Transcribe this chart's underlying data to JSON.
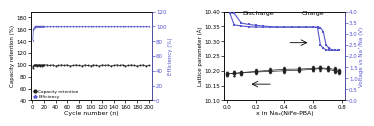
{
  "left_plot": {
    "cycle_numbers": [
      1,
      2,
      3,
      4,
      5,
      6,
      7,
      8,
      9,
      10,
      11,
      12,
      13,
      14,
      15,
      16,
      17,
      18,
      19,
      20,
      25,
      30,
      35,
      40,
      45,
      50,
      55,
      60,
      65,
      70,
      75,
      80,
      85,
      90,
      95,
      100,
      105,
      110,
      115,
      120,
      125,
      130,
      135,
      140,
      145,
      150,
      155,
      160,
      165,
      170,
      175,
      180,
      185,
      190,
      195,
      200
    ],
    "capacity_retention": [
      95,
      98,
      99,
      100,
      99,
      100,
      100,
      99,
      98,
      100,
      99,
      100,
      98,
      99,
      100,
      99,
      98,
      100,
      99,
      100,
      100,
      99,
      100,
      98,
      99,
      100,
      99,
      100,
      98,
      99,
      100,
      99,
      98,
      100,
      99,
      98,
      100,
      99,
      98,
      100,
      99,
      100,
      98,
      99,
      100,
      99,
      100,
      98,
      99,
      100,
      99,
      98,
      99,
      100,
      98,
      99
    ],
    "efficiency": [
      82,
      96,
      98,
      99,
      100,
      100,
      100,
      100,
      100,
      100,
      100,
      100,
      100,
      100,
      100,
      100,
      100,
      100,
      100,
      100,
      100,
      100,
      100,
      100,
      100,
      100,
      100,
      100,
      100,
      100,
      100,
      100,
      100,
      100,
      100,
      100,
      100,
      100,
      100,
      100,
      100,
      100,
      100,
      100,
      100,
      100,
      100,
      100,
      100,
      100,
      100,
      100,
      100,
      100,
      100,
      100
    ],
    "left_ylabel": "Capacity retention (%)",
    "right_ylabel": "Efficiency (%)",
    "xlabel": "Cycle number (n)",
    "legend_cap": "Capacity retention",
    "legend_eff": "Efficiency",
    "left_ylim": [
      40,
      190
    ],
    "left_yticks": [
      40,
      60,
      80,
      100,
      120,
      140,
      160,
      180
    ],
    "right_ylim": [
      0,
      120
    ],
    "right_yticks": [
      0,
      20,
      40,
      60,
      80,
      100,
      120
    ],
    "xlim": [
      -2,
      205
    ],
    "xticks": [
      0,
      20,
      40,
      60,
      80,
      100,
      120,
      140,
      160,
      180,
      200
    ],
    "cap_color": "#222222",
    "eff_color": "#5555cc"
  },
  "right_plot": {
    "lattice_x_discharge": [
      0.0,
      0.05,
      0.1,
      0.2,
      0.3,
      0.4,
      0.5,
      0.6,
      0.65,
      0.7,
      0.75,
      0.78
    ],
    "lattice_y_discharge": [
      10.19,
      10.191,
      10.193,
      10.196,
      10.198,
      10.2,
      10.202,
      10.205,
      10.208,
      10.205,
      10.2,
      10.195
    ],
    "lattice_x_charge": [
      0.78,
      0.75,
      0.7,
      0.65,
      0.6,
      0.5,
      0.4,
      0.3,
      0.2,
      0.1,
      0.05,
      0.0
    ],
    "lattice_y_charge": [
      10.2,
      10.205,
      10.208,
      10.21,
      10.208,
      10.206,
      10.205,
      10.202,
      10.198,
      10.194,
      10.191,
      10.19
    ],
    "voltage_x_discharge": [
      0.02,
      0.05,
      0.1,
      0.15,
      0.2,
      0.25,
      0.3,
      0.35,
      0.4,
      0.45,
      0.5,
      0.55,
      0.6,
      0.63,
      0.65,
      0.67,
      0.69,
      0.71,
      0.73,
      0.75,
      0.77,
      0.78
    ],
    "voltage_y_discharge": [
      3.92,
      3.4,
      3.35,
      3.32,
      3.3,
      3.3,
      3.3,
      3.3,
      3.3,
      3.3,
      3.3,
      3.3,
      3.3,
      3.28,
      2.5,
      2.35,
      2.28,
      2.26,
      2.25,
      2.25,
      2.25,
      2.25
    ],
    "voltage_x_charge": [
      0.78,
      0.77,
      0.75,
      0.73,
      0.71,
      0.69,
      0.67,
      0.65,
      0.63,
      0.6,
      0.55,
      0.5,
      0.45,
      0.4,
      0.35,
      0.3,
      0.25,
      0.2,
      0.15,
      0.1,
      0.05,
      0.02
    ],
    "voltage_y_charge": [
      2.25,
      2.25,
      2.25,
      2.28,
      2.35,
      2.5,
      3.1,
      3.28,
      3.3,
      3.3,
      3.3,
      3.3,
      3.3,
      3.3,
      3.3,
      3.32,
      3.35,
      3.38,
      3.42,
      3.48,
      3.92,
      3.95
    ],
    "left_ylabel": "Lattice parameter (Å)",
    "right_ylabel": "Voltage vs Na⁺/Na (V)",
    "xlabel": "x in Naₓ(NiFe-PBA)",
    "left_ylim": [
      10.1,
      10.4
    ],
    "left_yticks": [
      10.1,
      10.15,
      10.2,
      10.25,
      10.3,
      10.35,
      10.4
    ],
    "right_ylim": [
      0.0,
      4.0
    ],
    "right_yticks": [
      0.0,
      0.5,
      1.0,
      1.5,
      2.0,
      2.5,
      3.0,
      3.5,
      4.0
    ],
    "xlim": [
      -0.02,
      0.82
    ],
    "xticks": [
      0.0,
      0.2,
      0.4,
      0.6,
      0.8
    ],
    "lattice_color": "#222222",
    "voltage_color": "#5555cc",
    "discharge_label": "Discharge",
    "charge_label": "Charge"
  },
  "bg_color": "#ffffff"
}
